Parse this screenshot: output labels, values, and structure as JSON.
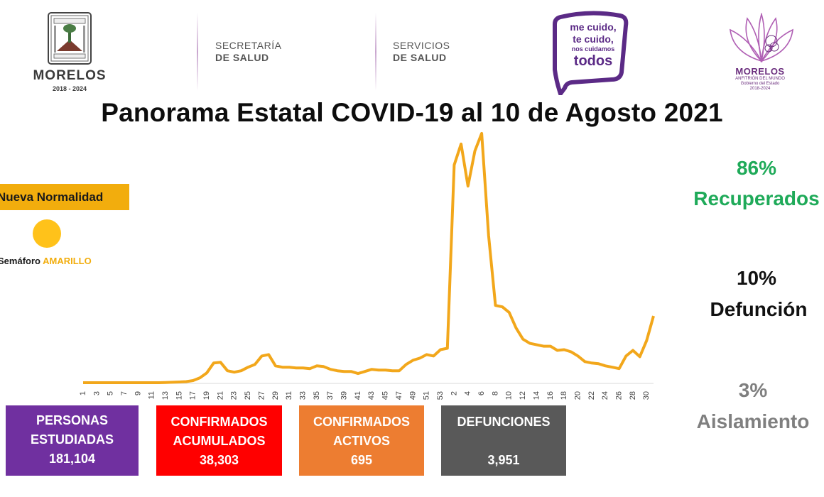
{
  "header": {
    "state_name": "MORELOS",
    "state_years": "2018 - 2024",
    "secretaria_line1": "SECRETARÍA",
    "secretaria_line2": "DE SALUD",
    "servicios_line1": "SERVICIOS",
    "servicios_line2": "DE SALUD",
    "campaign_line1": "me cuido,",
    "campaign_line2": "te cuido,",
    "campaign_line3": "nos cuidamos",
    "campaign_line4": "todos",
    "gob_name": "MORELOS",
    "gob_tagline": "ANFITRIÓN DEL MUNDO",
    "gob_sub1": "Gobierno del Estado",
    "gob_sub2": "2018-2024"
  },
  "title": "Panorama Estatal COVID-19 al 10 de Agosto 2021",
  "left_panel": {
    "normalidad": "Nueva Normalidad",
    "semaforo_label": "Semáforo",
    "semaforo_value": "AMARILLO",
    "semaforo_color": "#ffc21a"
  },
  "stats": {
    "recuperados_pct": "86%",
    "recuperados_label": "Recuperados",
    "recuperados_color": "#1faa59",
    "defuncion_pct": "10%",
    "defuncion_label": "Defunción",
    "defuncion_color": "#111111",
    "aislamiento_pct": "3%",
    "aislamiento_label": "Aislamiento",
    "aislamiento_color": "#7f7f7f"
  },
  "boxes": {
    "personas": {
      "line1": "PERSONAS",
      "line2": "ESTUDIADAS",
      "value": "181,104",
      "color": "#7030a0"
    },
    "confirmados": {
      "line1": "CONFIRMADOS",
      "line2": "ACUMULADOS",
      "value": "38,303",
      "color": "#ff0000"
    },
    "activos": {
      "line1": "CONFIRMADOS",
      "line2": "ACTIVOS",
      "value": "695",
      "color": "#ed7d31"
    },
    "defunciones": {
      "line1": "DEFUNCIONES",
      "value": "3,951",
      "color": "#595959"
    }
  },
  "chart_data": {
    "type": "line",
    "color": "#f2a71b",
    "x": [
      "1",
      "2",
      "3",
      "4",
      "5",
      "6",
      "7",
      "8",
      "9",
      "10",
      "11",
      "12",
      "13",
      "14",
      "15",
      "16",
      "17",
      "18",
      "19",
      "20",
      "21",
      "22",
      "23",
      "24",
      "25",
      "26",
      "27",
      "28",
      "29",
      "30",
      "31",
      "32",
      "33",
      "34",
      "35",
      "36",
      "37",
      "38",
      "39",
      "40",
      "41",
      "42",
      "43",
      "44",
      "45",
      "46",
      "47",
      "48",
      "49",
      "50",
      "51",
      "52",
      "53",
      "1",
      "2",
      "3",
      "4",
      "5",
      "6",
      "7",
      "8",
      "9",
      "10",
      "11",
      "12",
      "13",
      "14",
      "15",
      "16",
      "17",
      "18",
      "19",
      "20",
      "21",
      "22",
      "23",
      "24",
      "25",
      "26",
      "27",
      "28",
      "29",
      "30",
      "31"
    ],
    "tick_labels": [
      "1",
      "3",
      "5",
      "7",
      "9",
      "11",
      "13",
      "15",
      "17",
      "19",
      "21",
      "23",
      "25",
      "27",
      "29",
      "31",
      "33",
      "35",
      "37",
      "39",
      "41",
      "43",
      "45",
      "47",
      "49",
      "51",
      "53",
      "2",
      "4",
      "6",
      "8",
      "10",
      "12",
      "14",
      "16",
      "18",
      "20",
      "22",
      "24",
      "26",
      "28",
      "30"
    ],
    "tick_indices": [
      0,
      2,
      4,
      6,
      8,
      10,
      12,
      14,
      16,
      18,
      20,
      22,
      24,
      26,
      28,
      30,
      32,
      34,
      36,
      38,
      40,
      42,
      44,
      46,
      48,
      50,
      52,
      54,
      56,
      58,
      60,
      62,
      64,
      66,
      68,
      70,
      72,
      74,
      76,
      78,
      80,
      82
    ],
    "values": [
      0,
      0,
      0,
      0,
      0,
      0,
      0,
      0,
      0,
      0,
      0,
      0,
      0.3,
      0.6,
      1,
      1.5,
      3,
      7,
      14,
      28,
      29,
      17,
      15,
      17,
      22,
      26,
      38,
      40,
      24,
      22,
      22,
      21,
      21,
      20,
      24,
      23,
      19,
      17,
      16,
      16,
      13,
      16,
      19,
      18,
      18,
      17,
      17,
      26,
      32,
      35,
      40,
      38,
      47,
      49,
      310,
      340,
      280,
      330,
      355,
      210,
      110,
      108,
      100,
      78,
      62,
      56,
      54,
      52,
      52,
      46,
      47,
      44,
      38,
      30,
      28,
      27,
      24,
      22,
      20,
      38,
      46,
      37,
      60,
      95
    ],
    "ylim": [
      0,
      360
    ]
  }
}
